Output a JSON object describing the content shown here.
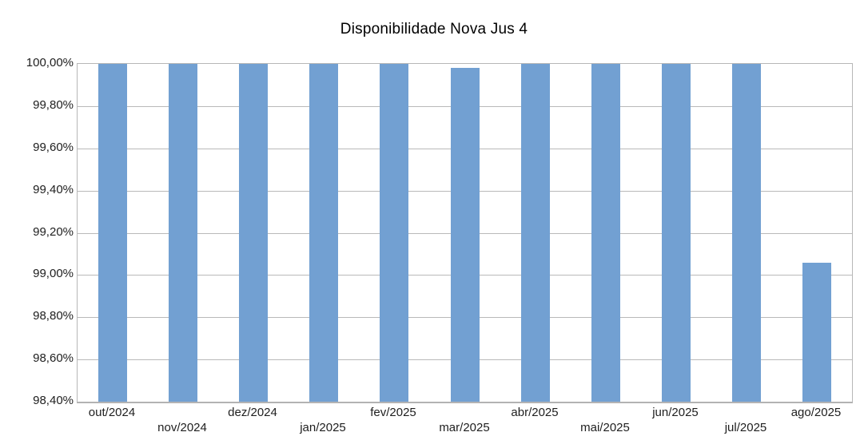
{
  "chart_data": {
    "type": "bar",
    "title": "Disponibilidade Nova Jus 4",
    "categories": [
      "out/2024",
      "nov/2024",
      "dez/2024",
      "jan/2025",
      "fev/2025",
      "mar/2025",
      "abr/2025",
      "mai/2025",
      "jun/2025",
      "jul/2025",
      "ago/2025"
    ],
    "values": [
      100.0,
      100.0,
      100.0,
      100.0,
      100.0,
      99.98,
      100.0,
      100.0,
      100.0,
      100.0,
      99.06
    ],
    "xlabel": "",
    "ylabel": "",
    "ylim": [
      98.4,
      100.0
    ],
    "ytick_step": 0.2,
    "ytick_labels": [
      "100,00%",
      "99,80%",
      "99,60%",
      "99,40%",
      "99,20%",
      "99,00%",
      "98,80%",
      "98,60%",
      "98,40%"
    ],
    "grid": true,
    "legend": false,
    "bar_color": "#72a0d2",
    "gridline_color": "#b9b9b9",
    "axis_color": "#b3b3b3",
    "text_color": "#1e1e1e",
    "background": "#ffffff"
  }
}
